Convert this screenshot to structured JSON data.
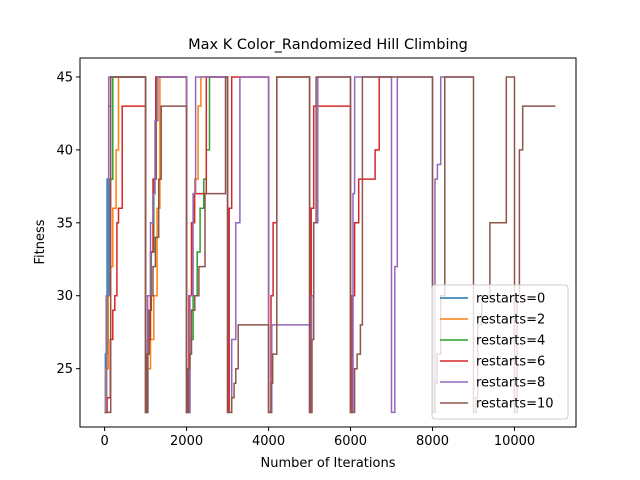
{
  "chart_data": {
    "type": "line",
    "title": "Max K Color_Randomized Hill Climbing",
    "xlabel": "Number of Iterations",
    "ylabel": "Fitness",
    "xlim": [
      -600,
      11500
    ],
    "ylim": [
      21,
      46.3
    ],
    "xticks": [
      0,
      2000,
      4000,
      6000,
      8000,
      10000
    ],
    "yticks": [
      25,
      30,
      35,
      40,
      45
    ],
    "grid": false,
    "legend": "lower right",
    "series": [
      {
        "name": "restarts=0",
        "color": "#1f77b4",
        "x": [
          0,
          20,
          20,
          60,
          60,
          100,
          100,
          150,
          150,
          1000
        ],
        "y": [
          22,
          22,
          26,
          26,
          38,
          38,
          43,
          43,
          45,
          45
        ]
      },
      {
        "name": "restarts=2",
        "color": "#ff7f0e",
        "x": [
          0,
          30,
          30,
          90,
          90,
          140,
          140,
          200,
          200,
          280,
          280,
          340,
          340,
          1000,
          1000,
          1040,
          1040,
          1120,
          1120,
          1200,
          1200,
          1280,
          1280,
          1350,
          1350,
          2000,
          2000,
          2060,
          2060,
          2130,
          2130,
          2200,
          2200,
          2280,
          2280,
          2350,
          2350,
          3000
        ],
        "y": [
          22,
          22,
          25,
          25,
          30,
          30,
          32,
          32,
          36,
          36,
          40,
          40,
          45,
          45,
          22,
          22,
          25,
          25,
          27,
          27,
          30,
          30,
          36,
          36,
          45,
          45,
          22,
          22,
          30,
          30,
          35,
          35,
          38,
          38,
          43,
          43,
          45,
          45
        ]
      },
      {
        "name": "restarts=4",
        "color": "#2ca02c",
        "x": [
          0,
          50,
          50,
          120,
          120,
          200,
          200,
          1000,
          1000,
          1060,
          1060,
          1140,
          1140,
          1200,
          1200,
          1260,
          1260,
          2000,
          2000,
          2080,
          2080,
          2160,
          2160,
          2260,
          2260,
          2330,
          2330,
          2420,
          2420,
          2480,
          2480,
          2560,
          2560,
          2680,
          2680,
          3000
        ],
        "y": [
          22,
          22,
          30,
          30,
          38,
          38,
          45,
          45,
          22,
          22,
          29,
          29,
          33,
          33,
          38,
          38,
          45,
          45,
          22,
          22,
          27,
          27,
          30,
          30,
          33,
          33,
          36,
          36,
          38,
          38,
          40,
          40,
          45,
          45,
          45,
          45
        ]
      },
      {
        "name": "restarts=6",
        "color": "#d62728",
        "x": [
          0,
          60,
          60,
          140,
          140,
          200,
          200,
          250,
          250,
          300,
          300,
          340,
          340,
          430,
          430,
          480,
          480,
          560,
          560,
          1000,
          1000,
          1050,
          1050,
          1120,
          1120,
          1180,
          1180,
          1250,
          1250,
          2000,
          2000,
          2060,
          2060,
          2120,
          2120,
          2190,
          2190,
          2260,
          2260,
          2480,
          2480,
          2550,
          2550,
          3000,
          3000,
          3040,
          3040,
          3100,
          3100,
          3160,
          3160,
          4000,
          4000,
          4060,
          4060,
          4110,
          4110,
          4200,
          4200,
          5000,
          5000,
          5040,
          5040,
          5100,
          5100,
          5180,
          5180,
          5500,
          5500,
          6000,
          6000,
          6040,
          6040,
          6100,
          6100,
          6200,
          6200,
          6300,
          6300,
          6400,
          6400,
          6600,
          6600,
          6700,
          6700,
          7000
        ],
        "y": [
          22,
          22,
          23,
          23,
          27,
          27,
          29,
          29,
          30,
          30,
          35,
          35,
          36,
          36,
          43,
          43,
          43,
          43,
          43,
          43,
          22,
          22,
          27,
          27,
          33,
          33,
          38,
          38,
          45,
          45,
          22,
          22,
          30,
          30,
          35,
          35,
          37,
          37,
          37,
          37,
          45,
          45,
          45,
          45,
          22,
          22,
          36,
          36,
          45,
          45,
          45,
          45,
          22,
          22,
          30,
          30,
          35,
          35,
          45,
          45,
          22,
          22,
          36,
          36,
          43,
          43,
          43,
          43,
          43,
          43,
          22,
          22,
          30,
          30,
          35,
          35,
          38,
          38,
          38,
          38,
          38,
          38,
          40,
          40,
          45,
          45
        ]
      },
      {
        "name": "restarts=8",
        "color": "#9467bd",
        "x": [
          0,
          40,
          40,
          100,
          100,
          1000,
          1000,
          1050,
          1050,
          1120,
          1120,
          1180,
          1180,
          1230,
          1230,
          1300,
          1300,
          1340,
          1340,
          2000,
          2000,
          2080,
          2080,
          2160,
          2160,
          2220,
          2220,
          3000,
          3000,
          3100,
          3100,
          3200,
          3200,
          3300,
          3300,
          3700,
          3700,
          4000,
          4000,
          4080,
          4080,
          4150,
          4150,
          5000,
          5000,
          5050,
          5050,
          5100,
          5100,
          5200,
          5200,
          6000,
          6000,
          6060,
          6060,
          6100,
          6100,
          6150,
          6150,
          7000,
          7000,
          7080,
          7080,
          7140,
          7140,
          7200,
          7200,
          8000,
          8000,
          8060,
          8060,
          8120,
          8120,
          8200,
          8200,
          9000
        ],
        "y": [
          22,
          22,
          30,
          30,
          45,
          45,
          22,
          22,
          30,
          30,
          35,
          35,
          37,
          37,
          42,
          42,
          45,
          45,
          45,
          45,
          22,
          22,
          30,
          30,
          37,
          37,
          45,
          45,
          22,
          22,
          27,
          27,
          35,
          35,
          45,
          45,
          45,
          45,
          22,
          22,
          28,
          28,
          28,
          28,
          22,
          22,
          30,
          30,
          35,
          35,
          45,
          45,
          22,
          22,
          37,
          37,
          45,
          45,
          45,
          45,
          22,
          22,
          32,
          32,
          45,
          45,
          45,
          45,
          22,
          22,
          38,
          38,
          39,
          39,
          45,
          45
        ]
      },
      {
        "name": "restarts=10",
        "color": "#8c564b",
        "x": [
          0,
          150,
          150,
          1000,
          1000,
          1040,
          1040,
          1090,
          1090,
          1140,
          1140,
          1180,
          1180,
          1240,
          1240,
          1320,
          1320,
          1380,
          1380,
          1420,
          1420,
          2000,
          2000,
          2040,
          2040,
          2080,
          2080,
          2120,
          2120,
          2200,
          2200,
          2300,
          2300,
          2450,
          2450,
          2550,
          2550,
          2950,
          2950,
          3000,
          3000,
          3100,
          3100,
          3160,
          3160,
          3200,
          3200,
          3260,
          3260,
          3300,
          3300,
          4000,
          4000,
          4060,
          4060,
          4100,
          4100,
          4200,
          4200,
          5000,
          5000,
          5060,
          5060,
          5100,
          5100,
          5160,
          5160,
          6000,
          6000,
          6100,
          6100,
          6160,
          6160,
          6240,
          6240,
          6290,
          6290,
          7000,
          7000,
          8000,
          8000,
          8060,
          8060,
          8110,
          8110,
          8200,
          8200,
          8300,
          8300,
          9000,
          9000,
          9060,
          9060,
          9100,
          9100,
          9200,
          9200,
          9400,
          9400,
          9800,
          9800,
          10000,
          10000,
          10060,
          10060,
          10120,
          10120,
          10200,
          10200,
          11000
        ],
        "y": [
          22,
          22,
          45,
          45,
          22,
          22,
          26,
          26,
          29,
          29,
          30,
          30,
          32,
          32,
          34,
          34,
          38,
          38,
          43,
          43,
          43,
          43,
          22,
          22,
          25,
          25,
          26,
          26,
          29,
          29,
          30,
          30,
          32,
          32,
          37,
          37,
          37,
          37,
          45,
          45,
          22,
          22,
          23,
          23,
          24,
          24,
          25,
          25,
          28,
          28,
          28,
          28,
          22,
          22,
          24,
          24,
          26,
          26,
          45,
          45,
          22,
          22,
          27,
          27,
          35,
          35,
          45,
          45,
          22,
          22,
          25,
          25,
          26,
          26,
          28,
          28,
          45,
          45,
          45,
          45,
          22,
          22,
          24,
          24,
          26,
          26,
          30,
          30,
          45,
          45,
          22,
          22,
          23,
          23,
          28,
          28,
          30,
          30,
          35,
          35,
          45,
          45,
          22,
          22,
          30,
          30,
          40,
          40,
          43,
          43
        ]
      }
    ]
  }
}
